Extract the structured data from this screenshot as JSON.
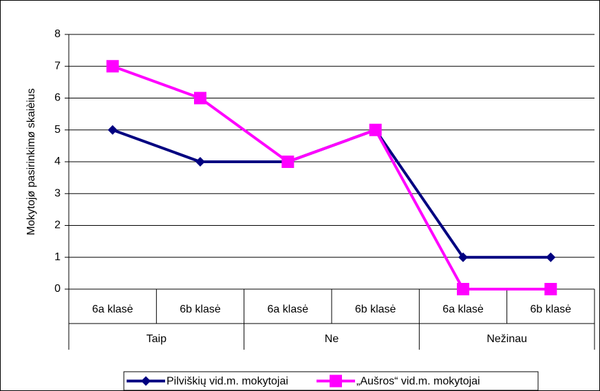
{
  "chart_data": {
    "type": "line",
    "y_label": "Mokytojø pasirinkimø skaièius",
    "categories": [
      "6a klasė",
      "6b klasė",
      "6a klasė",
      "6b klasė",
      "6a klasė",
      "6b klasė"
    ],
    "groups": [
      "Taip",
      "Ne",
      "Nežinau"
    ],
    "series": [
      {
        "name": "Pilviškių vid.m. mokytojai",
        "color": "#000080",
        "marker": "diamond",
        "values": [
          5,
          4,
          4,
          5,
          1,
          1
        ]
      },
      {
        "name": "„Aušros“ vid.m. mokytojai",
        "color": "#ff00ff",
        "marker": "square",
        "values": [
          7,
          6,
          4,
          5,
          0,
          0
        ]
      }
    ],
    "ylim": [
      0,
      8
    ],
    "yticks": [
      0,
      1,
      2,
      3,
      4,
      5,
      6,
      7,
      8
    ],
    "grid": true,
    "legend": "bottom"
  }
}
